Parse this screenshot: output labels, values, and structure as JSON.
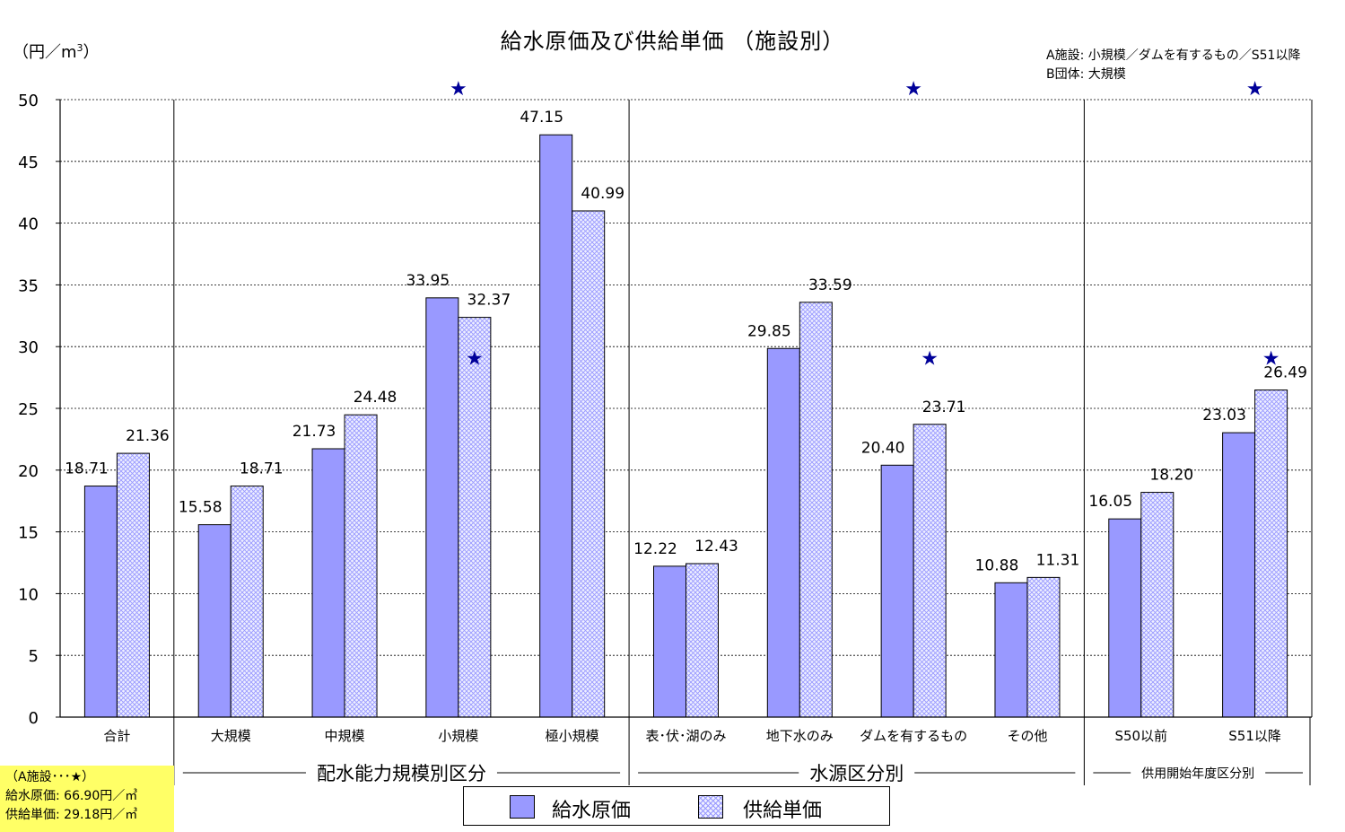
{
  "chart_data": {
    "type": "bar",
    "title": "給水原価及び供給単価 （施設別）",
    "ylabel": "（円／m",
    "ylabel_sup": "3",
    "ylabel_close": "）",
    "ylim": [
      0,
      50
    ],
    "yticks": [
      "0",
      "5",
      "10",
      "15",
      "20",
      "25",
      "30",
      "35",
      "40",
      "45",
      "50"
    ],
    "grid": "horizontal dashed",
    "legend_position": "bottom",
    "categories": [
      "合計",
      "大規模",
      "中規模",
      "小規模",
      "極小規模",
      "表･伏･湖のみ",
      "地下水のみ",
      "ダムを有するもの",
      "その他",
      "S50以前",
      "S51以降"
    ],
    "series": [
      {
        "name": "給水原価",
        "color": "#9999ff",
        "pattern": "solid",
        "values": [
          18.71,
          15.58,
          21.73,
          33.95,
          47.15,
          12.22,
          29.85,
          20.4,
          10.88,
          16.05,
          23.03
        ],
        "labels": [
          "18.71",
          "15.58",
          "21.73",
          "33.95",
          "47.15",
          "12.22",
          "29.85",
          "20.40",
          "10.88",
          "16.05",
          "23.03"
        ]
      },
      {
        "name": "供給単価",
        "color": "#9999ff",
        "pattern": "crosshatch",
        "values": [
          21.36,
          18.71,
          24.48,
          32.37,
          40.99,
          12.43,
          33.59,
          23.71,
          11.31,
          18.2,
          26.49
        ],
        "labels": [
          "21.36",
          "18.71",
          "24.48",
          "32.37",
          "40.99",
          "12.43",
          "33.59",
          "23.71",
          "11.31",
          "18.20",
          "26.49"
        ]
      }
    ],
    "groups": [
      {
        "label": "配水能力規模別区分",
        "categories": [
          "大規模",
          "中規模",
          "小規模",
          "極小規模"
        ]
      },
      {
        "label": "水源区分別",
        "categories": [
          "表･伏･湖のみ",
          "地下水のみ",
          "ダムを有するもの",
          "その他"
        ]
      },
      {
        "label": "供用開始年度区分別",
        "categories": [
          "S50以前",
          "S51以降"
        ]
      }
    ],
    "star_markers": {
      "symbol": "★",
      "color": "#000099",
      "meaning": "A施設",
      "category_markers": [
        {
          "category": "小規模",
          "value": 29.18
        },
        {
          "category": "ダムを有するもの",
          "value": 29.18
        },
        {
          "category": "S51以降",
          "value": 29.18
        }
      ],
      "offscale_markers": [
        {
          "category": "小規模"
        },
        {
          "category": "ダムを有するもの"
        },
        {
          "category": "S51以降"
        }
      ]
    },
    "annotation_right": [
      "A施設: 小規模／ダムを有するもの／S51以降",
      "B団体: 大規模"
    ],
    "annotation_left": [
      "（A施設･･･★）",
      "給水原価: 66.90円／㎥",
      "供給単価: 29.18円／㎥"
    ]
  }
}
